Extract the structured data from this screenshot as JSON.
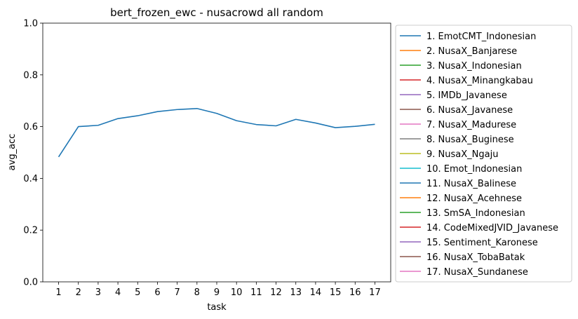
{
  "chart_data": {
    "type": "line",
    "title": "bert_frozen_ewc - nusacrowd all random",
    "xlabel": "task",
    "ylabel": "avg_acc",
    "x": [
      1,
      2,
      3,
      4,
      5,
      6,
      7,
      8,
      9,
      10,
      11,
      12,
      13,
      14,
      15,
      16,
      17
    ],
    "xticks": [
      "1",
      "2",
      "3",
      "4",
      "5",
      "6",
      "7",
      "8",
      "9",
      "10",
      "11",
      "12",
      "13",
      "14",
      "15",
      "16",
      "17"
    ],
    "ylim": [
      0.0,
      1.0
    ],
    "yticks": [
      "0.0",
      "0.2",
      "0.4",
      "0.6",
      "0.8",
      "1.0"
    ],
    "yticks_values": [
      0.0,
      0.2,
      0.4,
      0.6,
      0.8,
      1.0
    ],
    "grid": false,
    "legend_position": "outside-right",
    "series": [
      {
        "name": "1. EmotCMT_Indonesian",
        "color": "#1f77b4",
        "values": [
          0.483,
          0.6,
          0.605,
          0.631,
          0.642,
          0.658,
          0.666,
          0.67,
          0.651,
          0.623,
          0.608,
          0.603,
          0.628,
          0.614,
          0.596,
          0.601,
          0.609
        ]
      }
    ],
    "legend": [
      {
        "label": "1. EmotCMT_Indonesian",
        "color": "#1f77b4"
      },
      {
        "label": "2. NusaX_Banjarese",
        "color": "#ff7f0e"
      },
      {
        "label": "3. NusaX_Indonesian",
        "color": "#2ca02c"
      },
      {
        "label": "4. NusaX_Minangkabau",
        "color": "#d62728"
      },
      {
        "label": "5. IMDb_Javanese",
        "color": "#9467bd"
      },
      {
        "label": "6. NusaX_Javanese",
        "color": "#8c564b"
      },
      {
        "label": "7. NusaX_Madurese",
        "color": "#e377c2"
      },
      {
        "label": "8. NusaX_Buginese",
        "color": "#7f7f7f"
      },
      {
        "label": "9. NusaX_Ngaju",
        "color": "#bcbd22"
      },
      {
        "label": "10. Emot_Indonesian",
        "color": "#17becf"
      },
      {
        "label": "11. NusaX_Balinese",
        "color": "#1f77b4"
      },
      {
        "label": "12. NusaX_Acehnese",
        "color": "#ff7f0e"
      },
      {
        "label": "13. SmSA_Indonesian",
        "color": "#2ca02c"
      },
      {
        "label": "14. CodeMixedJVID_Javanese",
        "color": "#d62728"
      },
      {
        "label": "15. Sentiment_Karonese",
        "color": "#9467bd"
      },
      {
        "label": "16. NusaX_TobaBatak",
        "color": "#8c564b"
      },
      {
        "label": "17. NusaX_Sundanese",
        "color": "#e377c2"
      }
    ]
  }
}
